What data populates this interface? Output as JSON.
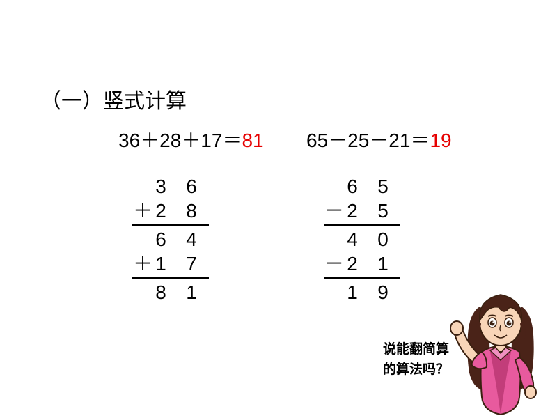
{
  "title": "（一）竖式计算",
  "equations": {
    "eq1": {
      "expr": "36＋28＋17＝",
      "answer": "81"
    },
    "eq2": {
      "expr": "65－25－21＝",
      "answer": "19"
    }
  },
  "vertical": {
    "v1": {
      "rows": [
        {
          "op": " ",
          "d1": "3",
          "d2": "6"
        },
        {
          "op": "＋",
          "d1": "2",
          "d2": "8"
        },
        {
          "line": true
        },
        {
          "op": " ",
          "d1": "6",
          "d2": "4"
        },
        {
          "op": "＋",
          "d1": "1",
          "d2": "7"
        },
        {
          "line": true
        },
        {
          "op": " ",
          "d1": "8",
          "d2": "1"
        }
      ]
    },
    "v2": {
      "rows": [
        {
          "op": " ",
          "d1": "6",
          "d2": "5"
        },
        {
          "op": "－",
          "d1": "2",
          "d2": "5"
        },
        {
          "line": true
        },
        {
          "op": " ",
          "d1": "4",
          "d2": "0"
        },
        {
          "op": "－",
          "d1": "2",
          "d2": "1"
        },
        {
          "line": true
        },
        {
          "op": " ",
          "d1": "1",
          "d2": "9"
        }
      ]
    }
  },
  "speech": {
    "line1": "说能翻简算",
    "line2": "的算法吗？"
  },
  "colors": {
    "bg": "#ffffff",
    "text": "#000000",
    "answer": "#e60000",
    "teacher_hair": "#4a2318",
    "teacher_skin": "#f8d5b8",
    "teacher_shirt": "#e85a9e",
    "teacher_shirt_dark": "#c23d7a"
  }
}
